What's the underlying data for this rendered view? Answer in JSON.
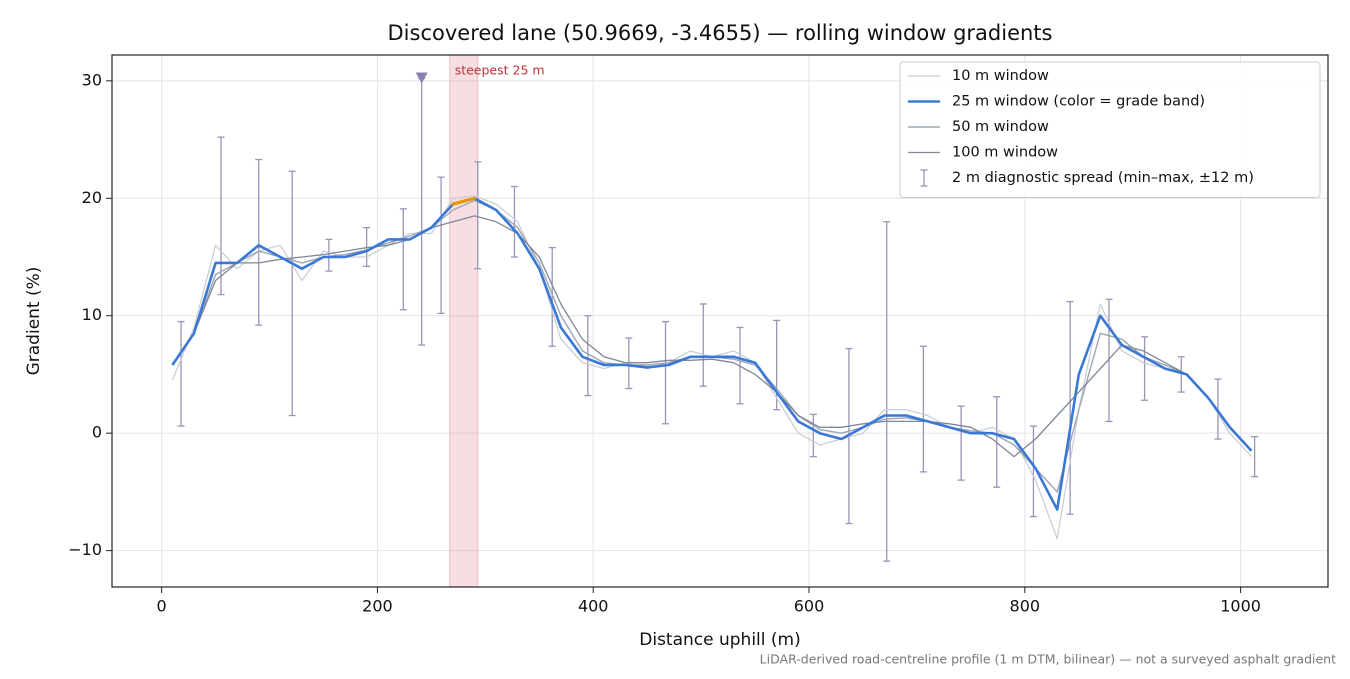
{
  "chart_data": {
    "type": "line",
    "title": "Discovered lane (50.9669, -3.4655) — rolling window gradients",
    "x_label": "Distance uphill (m)",
    "y_label": "Gradient (%)",
    "footnote": "LiDAR-derived road-centreline profile (1 m DTM, bilinear) — not a surveyed asphalt gradient",
    "xlim": [
      -46,
      1081
    ],
    "ylim": [
      -13.1,
      32.2
    ],
    "xticks": [
      0,
      200,
      400,
      600,
      800,
      1000
    ],
    "yticks": [
      {
        "value": -10,
        "label": "−10"
      },
      0,
      10,
      20,
      30
    ],
    "grid": true,
    "legend": "upper right",
    "x": [
      10,
      30,
      50,
      70,
      90,
      110,
      130,
      150,
      170,
      190,
      210,
      230,
      250,
      270,
      290,
      310,
      330,
      350,
      370,
      390,
      410,
      430,
      450,
      470,
      490,
      510,
      530,
      550,
      570,
      590,
      610,
      630,
      650,
      670,
      690,
      710,
      730,
      750,
      770,
      790,
      810,
      830,
      850,
      870,
      890,
      910,
      930,
      950,
      970,
      990,
      1010
    ],
    "series": [
      {
        "name": "10 m window",
        "color": "#c5ccd6",
        "linewidth": 1.2,
        "values": [
          4.5,
          9,
          16,
          14,
          15.5,
          16,
          13,
          15.5,
          15,
          15,
          16,
          17,
          17,
          20,
          20.2,
          19.5,
          18,
          14,
          8,
          6,
          5.5,
          6,
          5.5,
          6,
          7,
          6.5,
          7,
          6,
          3,
          0,
          -1,
          -0.5,
          0,
          2,
          2,
          1.5,
          0.5,
          0,
          0.5,
          -0.5,
          -4,
          -9,
          2,
          11,
          7,
          6,
          5.5,
          5,
          3,
          0,
          -2
        ]
      },
      {
        "name": "25 m window (color = grade band)",
        "color": "#3a78d6",
        "linewidth": 2.6,
        "values": [
          5.8,
          8.5,
          14.5,
          14.5,
          16,
          15,
          14,
          15,
          15,
          15.5,
          16.5,
          16.5,
          17.5,
          19.5,
          20,
          19,
          17,
          14,
          9,
          6.5,
          5.8,
          5.8,
          5.6,
          5.8,
          6.5,
          6.5,
          6.5,
          6,
          3.5,
          1,
          0,
          -0.5,
          0.5,
          1.5,
          1.5,
          1,
          0.5,
          0,
          0,
          -0.5,
          -3,
          -6.5,
          5,
          10,
          7.5,
          6.5,
          5.5,
          5,
          3,
          0.5,
          -1.5
        ]
      },
      {
        "name": "50 m window",
        "color": "#9ca6b5",
        "linewidth": 1.4,
        "values": [
          null,
          8.5,
          13.5,
          14.5,
          15.5,
          15,
          14.5,
          15,
          15.2,
          15.6,
          16.2,
          16.8,
          17.5,
          19,
          19.8,
          19,
          17.5,
          14.5,
          10,
          7,
          6,
          5.8,
          5.8,
          6,
          6.5,
          6.5,
          6.3,
          5.8,
          3.8,
          1.5,
          0.3,
          0,
          0.5,
          1.2,
          1.3,
          1,
          0.5,
          0.2,
          0,
          -1,
          -3,
          -5,
          2,
          8.5,
          8,
          6.5,
          5.8,
          5,
          3,
          0.5,
          -1.5
        ]
      },
      {
        "name": "100 m window",
        "color": "#7f8797",
        "linewidth": 1.3,
        "values": [
          null,
          8.5,
          13,
          14.5,
          14.5,
          14.8,
          15,
          15.2,
          15.5,
          15.8,
          16,
          16.5,
          17.5,
          18,
          18.5,
          18,
          17,
          15,
          11,
          8,
          6.5,
          6,
          6,
          6.2,
          6.2,
          6.3,
          6,
          5,
          3.5,
          1.5,
          0.5,
          0.5,
          0.8,
          1,
          1,
          1,
          0.8,
          0.5,
          -0.5,
          -2,
          -0.5,
          1.5,
          3.5,
          5.5,
          7.5,
          7,
          6,
          5,
          3,
          0.5,
          null
        ]
      }
    ],
    "steepest": {
      "label": "steepest 25 m",
      "x": [
        267,
        293
      ],
      "color": "#e69500",
      "band_color": "#e8a0a8"
    },
    "errorbars": {
      "name": "2 m diagnostic spread (min–max, ±12 m)",
      "color": "#9a94b8",
      "x": [
        18,
        55,
        90,
        121,
        155,
        190,
        224,
        241,
        259,
        293,
        327,
        362,
        395,
        433,
        467,
        502,
        536,
        570,
        604,
        637,
        672,
        706,
        741,
        774,
        808,
        842,
        878,
        911,
        945,
        979,
        1013
      ],
      "low": [
        0.6,
        11.8,
        9.2,
        1.5,
        13.8,
        14.2,
        10.5,
        7.5,
        10.2,
        14,
        15,
        7.4,
        3.2,
        3.8,
        0.8,
        4,
        2.5,
        2,
        -2,
        -7.7,
        -10.9,
        -3.3,
        -4,
        -4.6,
        -7.1,
        -6.9,
        1,
        2.8,
        3.5,
        -0.5,
        -3.7
      ],
      "high": [
        9.5,
        25.2,
        23.3,
        22.3,
        16.5,
        17.5,
        19.1,
        30.2,
        21.8,
        23.1,
        21,
        15.8,
        10,
        8.1,
        9.5,
        11,
        9,
        9.6,
        1.6,
        7.2,
        18,
        7.4,
        2.3,
        3.1,
        0.6,
        11.2,
        11.4,
        8.2,
        6.5,
        4.6,
        -0.3
      ]
    },
    "clipped_marker": {
      "x": 241,
      "y": 30.2,
      "color": "#8a7fb0"
    }
  }
}
